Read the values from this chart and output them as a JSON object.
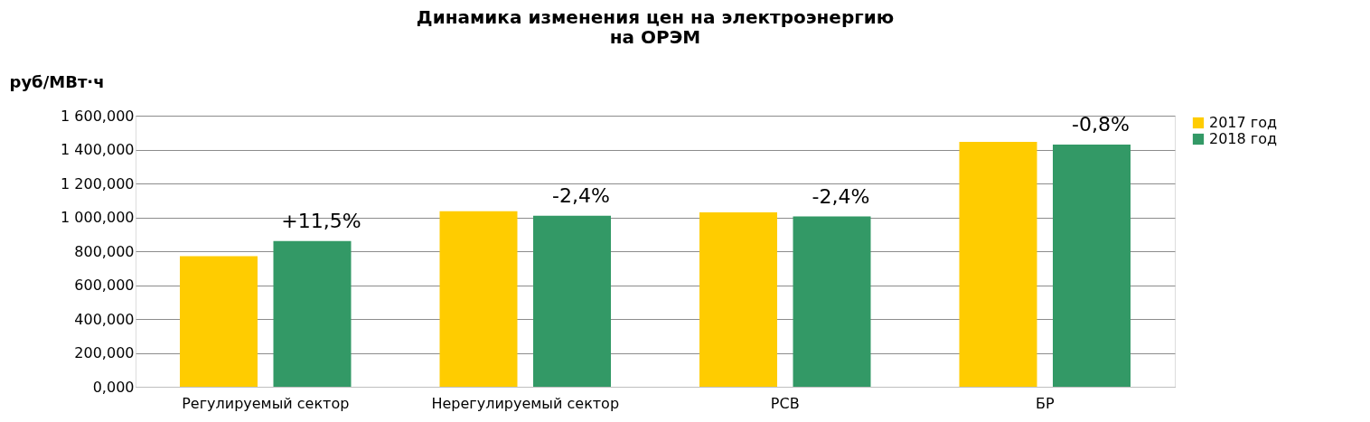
{
  "chart_data": {
    "type": "bar",
    "title": [
      "Динамика изменения цен на электроэнергию",
      "на ОРЭМ"
    ],
    "ylabel": "руб/МВт·ч",
    "categories": [
      "Регулируемый сектор",
      "Нерегулируемый сектор",
      "РСВ",
      "БР"
    ],
    "series": [
      {
        "name": "2017 год",
        "color": "#ffcc00",
        "values": [
          771,
          1036,
          1030,
          1445
        ]
      },
      {
        "name": "2018 год",
        "color": "#339966",
        "values": [
          860,
          1010,
          1005,
          1429
        ]
      }
    ],
    "ylim": [
      0,
      1600
    ],
    "yticks": [
      {
        "value": 0,
        "label": "0,000"
      },
      {
        "value": 200,
        "label": "200,000"
      },
      {
        "value": 400,
        "label": "400,000"
      },
      {
        "value": 600,
        "label": "600,000"
      },
      {
        "value": 800,
        "label": "800,000"
      },
      {
        "value": 1000,
        "label": "1 000,000"
      },
      {
        "value": 1200,
        "label": "1 200,000"
      },
      {
        "value": 1400,
        "label": "1 400,000"
      },
      {
        "value": 1600,
        "label": "1 600,000"
      }
    ],
    "grid": "y",
    "legend": "right",
    "annotations": [
      "+11,5%",
      "-2,4%",
      "-2,4%",
      "-0,8%"
    ]
  }
}
